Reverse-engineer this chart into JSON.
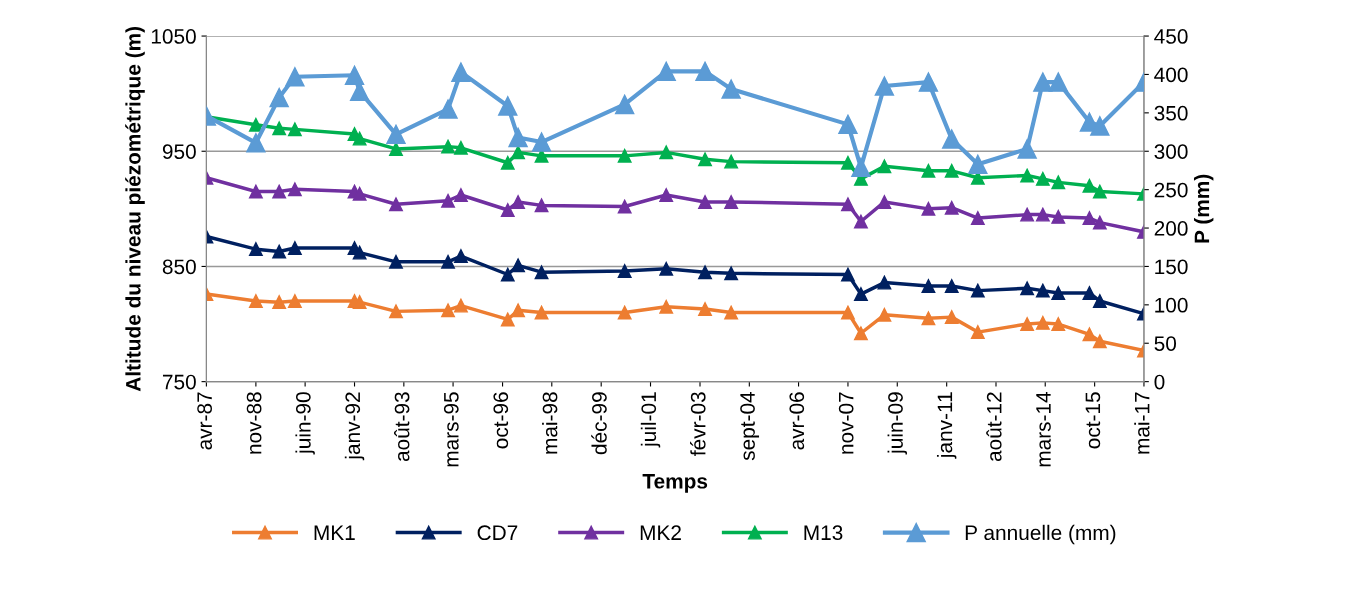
{
  "chart_data": {
    "type": "line",
    "xlabel": "Temps",
    "ylabel": "Altitude du niveau piézométrique (m)",
    "y2label": "P (mm)",
    "x": [
      "1987-04",
      "1988-11",
      "1989-08",
      "1990-02",
      "1992-01",
      "1992-03",
      "1993-05",
      "1995-01",
      "1995-06",
      "1996-12",
      "1997-04",
      "1998-01",
      "2000-09",
      "2002-01",
      "2003-04",
      "2004-02",
      "2007-11",
      "2008-04",
      "2009-01",
      "2010-06",
      "2011-03",
      "2012-01",
      "2013-08",
      "2014-02",
      "2014-08",
      "2015-08",
      "2015-12",
      "2017-05"
    ],
    "series": [
      {
        "name": "MK1",
        "color": "#ed7d31",
        "values": [
          826,
          820,
          819,
          820,
          820,
          819,
          811,
          812,
          816,
          804,
          812,
          810,
          810,
          815,
          813,
          810,
          810,
          792,
          808,
          805,
          806,
          793,
          800,
          801,
          800,
          791,
          785,
          777
        ]
      },
      {
        "name": "CD7",
        "color": "#002060",
        "values": [
          876,
          865,
          863,
          866,
          866,
          862,
          854,
          854,
          859,
          843,
          851,
          845,
          846,
          848,
          845,
          844,
          843,
          826,
          836,
          833,
          833,
          829,
          831,
          829,
          827,
          827,
          820,
          809
        ]
      },
      {
        "name": "MK2",
        "color": "#7030a0",
        "values": [
          927,
          915,
          915,
          917,
          915,
          913,
          904,
          907,
          912,
          899,
          906,
          903,
          902,
          912,
          906,
          906,
          904,
          889,
          906,
          900,
          901,
          892,
          895,
          895,
          893,
          892,
          888,
          880
        ]
      },
      {
        "name": "M13",
        "color": "#00b050",
        "values": [
          980,
          973,
          970,
          969,
          965,
          961,
          952,
          954,
          953,
          940,
          949,
          946,
          946,
          949,
          943,
          941,
          940,
          926,
          937,
          933,
          933,
          927,
          929,
          926,
          923,
          920,
          915,
          913
        ]
      },
      {
        "name": "P annuelle (mm)",
        "color": "#5b9bd5",
        "axis": "y2",
        "values": [
          346,
          311,
          370,
          397,
          399,
          378,
          322,
          355,
          403,
          359,
          318,
          312,
          361,
          404,
          404,
          381,
          335,
          279,
          385,
          390,
          316,
          283,
          303,
          390,
          390,
          338,
          333,
          390
        ]
      }
    ],
    "ylim": [
      750,
      1050
    ],
    "yticks": [
      750,
      850,
      950,
      1050
    ],
    "y2lim": [
      0,
      450
    ],
    "y2ticks": [
      0,
      50,
      100,
      150,
      200,
      250,
      300,
      350,
      400,
      450
    ],
    "xlim": [
      "1987-04",
      "2017-05"
    ],
    "xticks": [
      {
        "value": "1987-04",
        "label": "avr-87"
      },
      {
        "value": "1988-11",
        "label": "nov-88"
      },
      {
        "value": "1990-06",
        "label": "juin-90"
      },
      {
        "value": "1992-01",
        "label": "janv-92"
      },
      {
        "value": "1993-08",
        "label": "août-93"
      },
      {
        "value": "1995-03",
        "label": "mars-95"
      },
      {
        "value": "1996-10",
        "label": "oct-96"
      },
      {
        "value": "1998-05",
        "label": "mai-98"
      },
      {
        "value": "1999-12",
        "label": "déc-99"
      },
      {
        "value": "2001-07",
        "label": "juil-01"
      },
      {
        "value": "2003-02",
        "label": "févr-03"
      },
      {
        "value": "2004-09",
        "label": "sept-04"
      },
      {
        "value": "2006-04",
        "label": "avr-06"
      },
      {
        "value": "2007-11",
        "label": "nov-07"
      },
      {
        "value": "2009-06",
        "label": "juin-09"
      },
      {
        "value": "2011-01",
        "label": "janv-11"
      },
      {
        "value": "2012-08",
        "label": "août-12"
      },
      {
        "value": "2014-03",
        "label": "mars-14"
      },
      {
        "value": "2015-10",
        "label": "oct-15"
      },
      {
        "value": "2017-05",
        "label": "mai-17"
      }
    ],
    "grid": "y",
    "legend": "bottom",
    "marker": "triangle",
    "line_style": "solid"
  }
}
